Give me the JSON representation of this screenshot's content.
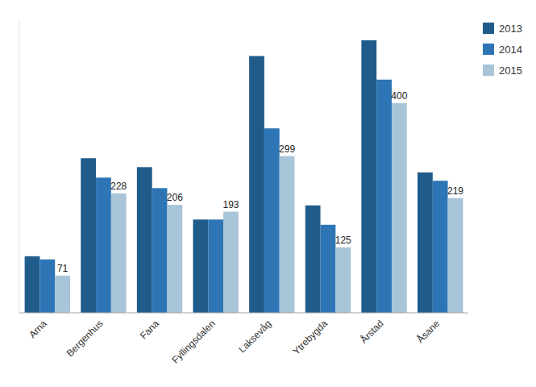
{
  "chart_data": {
    "type": "bar",
    "categories": [
      "Arna",
      "Bergenhus",
      "Fana",
      "Fyllingsdalen",
      "Laksevåg",
      "Ytrebygda",
      "Årstad",
      "Åsane"
    ],
    "series": [
      {
        "name": "2013",
        "color": "#1f5c8b",
        "values": [
          108,
          295,
          278,
          178,
          490,
          205,
          520,
          268
        ]
      },
      {
        "name": "2014",
        "color": "#2e75b6",
        "values": [
          102,
          258,
          238,
          178,
          352,
          168,
          445,
          252
        ]
      },
      {
        "name": "2015",
        "color": "#a8c4d8",
        "values": [
          71,
          228,
          206,
          193,
          299,
          125,
          400,
          219
        ],
        "data_labels": true
      }
    ],
    "ylim": [
      0,
      560
    ],
    "grid": false,
    "legend": "upper right",
    "tick_labels": "x"
  }
}
